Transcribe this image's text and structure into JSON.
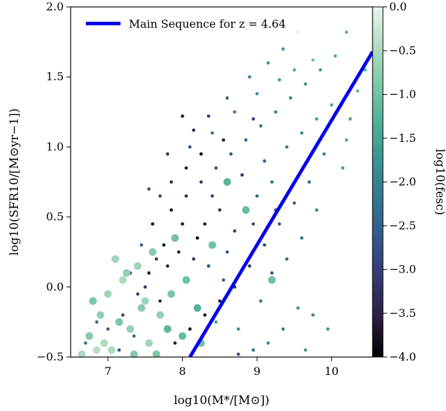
{
  "chart_data": {
    "type": "scatter",
    "xlabel": "log10(M*/[M⊙])",
    "ylabel": "log10(SFR10/[M⊙yr−1])",
    "colorbar_label": "log10(fesc)",
    "xlim": [
      6.5,
      10.55
    ],
    "ylim": [
      -0.5,
      2.0
    ],
    "x_ticks": [
      7,
      8,
      9,
      10
    ],
    "x_tick_labels": [
      "7",
      "8",
      "9",
      "10"
    ],
    "y_ticks": [
      -0.5,
      0.0,
      0.5,
      1.0,
      1.5,
      2.0
    ],
    "y_tick_labels": [
      "−0.5",
      "0.0",
      "0.5",
      "1.0",
      "1.5",
      "2.0"
    ],
    "colorbar_range": [
      -4.0,
      0.0
    ],
    "colorbar_ticks": [
      0.0,
      -0.5,
      -1.0,
      -1.5,
      -2.0,
      -2.5,
      -3.0,
      -3.5,
      -4.0
    ],
    "colorbar_tick_labels": [
      "0.0",
      "−0.5",
      "−1.0",
      "−1.5",
      "−2.0",
      "−2.5",
      "−3.0",
      "−3.5",
      "−4.0"
    ],
    "legend": {
      "label": "Main Sequence for z = 4.64",
      "placement": "top-left",
      "color": "#0000ee"
    },
    "main_sequence": {
      "x": [
        8.1,
        10.55
      ],
      "y": [
        -0.5,
        1.68
      ]
    },
    "colormap": [
      "#000000",
      "#2a1d3f",
      "#35376f",
      "#34558a",
      "#34748f",
      "#3a9292",
      "#4fae97",
      "#7cc7a6",
      "#b5ddc4",
      "#e6f5ee"
    ],
    "grid": false,
    "points": [
      [
        7.05,
        -0.45,
        -0.5,
        1
      ],
      [
        6.75,
        -0.35,
        -0.8,
        1
      ],
      [
        6.9,
        -0.2,
        -0.7,
        1
      ],
      [
        7.0,
        -0.05,
        -0.6,
        1
      ],
      [
        7.2,
        0.05,
        -0.5,
        1
      ],
      [
        7.4,
        0.15,
        -0.6,
        1
      ],
      [
        7.6,
        0.25,
        -0.8,
        1
      ],
      [
        6.85,
        -0.45,
        -0.4,
        1
      ],
      [
        7.3,
        -0.3,
        -0.7,
        1
      ],
      [
        7.5,
        -0.1,
        -0.6,
        1
      ],
      [
        7.15,
        -0.25,
        -0.9,
        1
      ],
      [
        6.95,
        -0.4,
        -0.5,
        1
      ],
      [
        7.7,
        -0.2,
        -0.7,
        1
      ],
      [
        7.85,
        -0.05,
        -0.9,
        1
      ],
      [
        8.05,
        0.05,
        -1.0,
        1
      ],
      [
        7.55,
        -0.4,
        -0.6,
        1
      ],
      [
        7.35,
        -0.48,
        -0.8,
        1
      ],
      [
        6.65,
        -0.48,
        -0.5,
        1
      ],
      [
        7.8,
        -0.3,
        -1.2,
        1
      ],
      [
        8.2,
        -0.15,
        -1.3,
        1
      ],
      [
        8.0,
        -0.35,
        -1.1,
        1
      ],
      [
        7.25,
        0.1,
        -0.7,
        1
      ],
      [
        6.8,
        -0.1,
        -0.9,
        1
      ],
      [
        7.45,
        -0.15,
        -0.8,
        1
      ],
      [
        7.9,
        0.35,
        -1.0,
        1
      ],
      [
        8.6,
        0.75,
        -1.2,
        1
      ],
      [
        8.85,
        0.55,
        -1.1,
        1
      ],
      [
        8.4,
        0.3,
        -1.0,
        1
      ],
      [
        9.2,
        0.05,
        -1.0,
        1
      ],
      [
        8.25,
        -0.4,
        -1.0,
        1
      ],
      [
        7.65,
        -0.48,
        -0.9,
        1
      ],
      [
        7.1,
        0.2,
        -0.6,
        1
      ],
      [
        8.45,
        -0.25,
        -1.5,
        0
      ],
      [
        8.75,
        -0.3,
        -1.8,
        0
      ],
      [
        9.05,
        -0.1,
        -2.2,
        0
      ],
      [
        8.55,
        0.05,
        -2.5,
        0
      ],
      [
        8.35,
        0.15,
        -2.8,
        0
      ],
      [
        8.15,
        0.2,
        -3.2,
        0
      ],
      [
        7.95,
        0.25,
        -3.5,
        0
      ],
      [
        7.75,
        0.3,
        -3.8,
        0
      ],
      [
        7.55,
        0.1,
        -3.6,
        0
      ],
      [
        7.4,
        -0.05,
        -3.0,
        0
      ],
      [
        7.6,
        0.45,
        -3.9,
        0
      ],
      [
        7.85,
        0.55,
        -3.7,
        0
      ],
      [
        8.05,
        0.65,
        -3.4,
        0
      ],
      [
        8.25,
        0.75,
        -3.1,
        0
      ],
      [
        8.45,
        0.85,
        -2.9,
        0
      ],
      [
        8.65,
        0.95,
        -2.6,
        0
      ],
      [
        8.85,
        1.05,
        -2.4,
        0
      ],
      [
        9.05,
        1.15,
        -2.2,
        0
      ],
      [
        9.25,
        1.25,
        -2.0,
        0
      ],
      [
        9.45,
        1.35,
        -1.9,
        0
      ],
      [
        9.65,
        1.45,
        -1.7,
        0
      ],
      [
        9.85,
        1.55,
        -1.5,
        0
      ],
      [
        10.05,
        1.65,
        -1.3,
        0
      ],
      [
        10.2,
        1.82,
        -1.2,
        0
      ],
      [
        9.75,
        1.62,
        -1.0,
        0
      ],
      [
        9.5,
        1.55,
        -1.4,
        0
      ],
      [
        8.95,
        1.2,
        -3.0,
        0
      ],
      [
        8.55,
        1.05,
        -3.5,
        0
      ],
      [
        8.25,
        0.95,
        -3.8,
        0
      ],
      [
        8.05,
        0.85,
        -3.6,
        0
      ],
      [
        7.85,
        0.75,
        -3.3,
        0
      ],
      [
        7.7,
        0.65,
        -2.9,
        0
      ],
      [
        8.1,
        1.0,
        -2.7,
        0
      ],
      [
        8.4,
        1.1,
        -2.3,
        0
      ],
      [
        8.7,
        1.25,
        -2.0,
        0
      ],
      [
        9.0,
        1.38,
        -1.8,
        0
      ],
      [
        9.3,
        1.48,
        -1.6,
        0
      ],
      [
        8.8,
        0.8,
        -3.2,
        0
      ],
      [
        9.1,
        0.9,
        -2.6,
        0
      ],
      [
        9.4,
        1.0,
        -2.1,
        0
      ],
      [
        9.6,
        1.1,
        -1.9,
        0
      ],
      [
        9.8,
        1.2,
        -1.6,
        0
      ],
      [
        10.0,
        1.3,
        -1.4,
        0
      ],
      [
        10.2,
        1.05,
        -1.3,
        0
      ],
      [
        10.35,
        1.4,
        -1.1,
        0
      ],
      [
        10.25,
        1.2,
        -1.5,
        0
      ],
      [
        9.9,
        0.95,
        -2.0,
        0
      ],
      [
        9.7,
        0.75,
        -2.3,
        0
      ],
      [
        9.5,
        0.6,
        -2.5,
        0
      ],
      [
        9.3,
        0.45,
        -2.7,
        0
      ],
      [
        9.1,
        0.3,
        -2.9,
        0
      ],
      [
        8.9,
        0.15,
        -3.1,
        0
      ],
      [
        8.7,
        0.0,
        -3.3,
        0
      ],
      [
        8.5,
        -0.1,
        -3.5,
        0
      ],
      [
        8.3,
        -0.2,
        -3.7,
        0
      ],
      [
        8.1,
        -0.3,
        -3.9,
        0
      ],
      [
        7.9,
        -0.4,
        -3.6,
        0
      ],
      [
        7.7,
        -0.1,
        -3.4,
        0
      ],
      [
        7.5,
        0.0,
        -3.2,
        0
      ],
      [
        7.3,
        0.1,
        -3.0,
        0
      ],
      [
        7.2,
        -0.2,
        -2.8,
        0
      ],
      [
        7.0,
        -0.3,
        -2.6,
        0
      ],
      [
        6.85,
        -0.25,
        -2.4,
        0
      ],
      [
        6.7,
        -0.4,
        -2.2,
        0
      ],
      [
        9.95,
        -0.3,
        -1.7,
        0
      ],
      [
        9.75,
        -0.2,
        -2.0,
        0
      ],
      [
        9.55,
        -0.15,
        -1.8,
        0
      ],
      [
        9.35,
        -0.3,
        -2.1,
        0
      ],
      [
        9.15,
        -0.4,
        -1.9,
        0
      ],
      [
        8.95,
        -0.45,
        -2.3,
        0
      ],
      [
        8.75,
        -0.48,
        -2.6,
        0
      ],
      [
        9.65,
        -0.45,
        -1.6,
        0
      ],
      [
        8.3,
        0.45,
        -3.6,
        0
      ],
      [
        8.5,
        0.55,
        -3.3,
        0
      ],
      [
        8.7,
        0.4,
        -2.9,
        0
      ],
      [
        8.6,
        0.25,
        -2.7,
        0
      ],
      [
        8.2,
        0.35,
        -3.9,
        0
      ],
      [
        8.0,
        0.45,
        -3.8,
        0
      ],
      [
        7.8,
        0.15,
        -3.5,
        0
      ],
      [
        8.4,
        0.65,
        -3.0,
        0
      ],
      [
        9.0,
        0.65,
        -2.4,
        0
      ],
      [
        9.2,
        0.75,
        -2.2,
        0
      ],
      [
        9.25,
        0.55,
        -2.6,
        0
      ],
      [
        8.95,
        0.45,
        -2.8,
        0
      ],
      [
        7.65,
        0.2,
        -3.1,
        0
      ],
      [
        7.45,
        0.3,
        -2.5,
        0
      ],
      [
        7.35,
        -0.35,
        -2.3,
        0
      ],
      [
        7.15,
        -0.45,
        -2.7,
        0
      ],
      [
        8.9,
        1.5,
        -1.9,
        0
      ],
      [
        9.15,
        1.6,
        -1.7,
        0
      ],
      [
        9.55,
        1.82,
        -1.5,
        0
      ],
      [
        9.35,
        1.7,
        -1.6,
        0
      ],
      [
        8.6,
        1.35,
        -2.5,
        0
      ],
      [
        8.35,
        1.22,
        -3.0,
        0
      ],
      [
        8.15,
        1.12,
        -3.4,
        0
      ],
      [
        8.0,
        1.22,
        -3.6,
        0
      ],
      [
        7.55,
        0.7,
        -2.8,
        0
      ],
      [
        7.8,
        0.95,
        -3.2,
        0
      ],
      [
        10.45,
        1.55,
        -1.2,
        0
      ],
      [
        10.15,
        0.85,
        -1.6,
        0
      ],
      [
        9.8,
        0.55,
        -1.9,
        0
      ],
      [
        9.6,
        0.35,
        -2.2,
        0
      ],
      [
        9.4,
        0.2,
        -2.4,
        0
      ],
      [
        9.2,
        0.1,
        -2.7,
        0
      ]
    ]
  }
}
